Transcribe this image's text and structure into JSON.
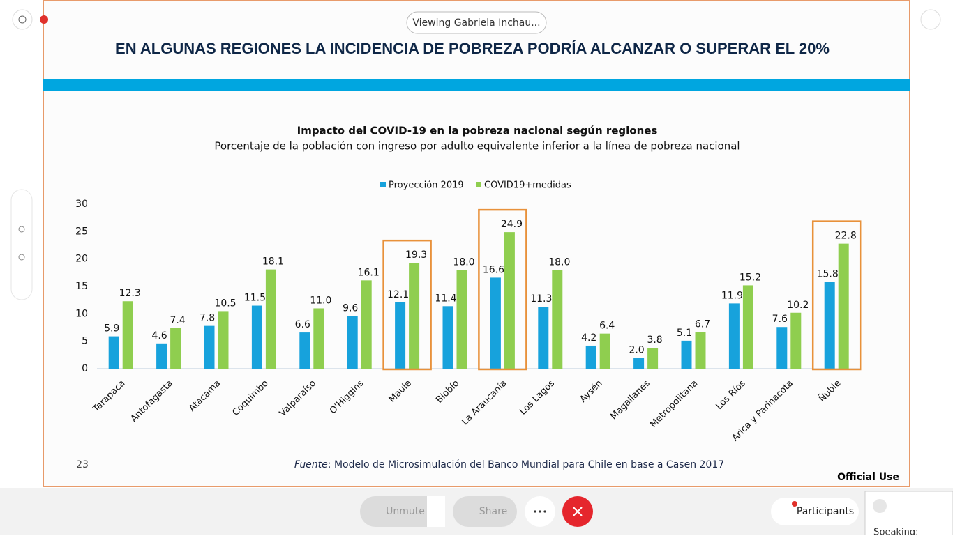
{
  "viewing_banner": "Viewing Gabriela Inchau...",
  "slide": {
    "title": "EN ALGUNAS REGIONES LA INCIDENCIA DE POBREZA PODRÍA ALCANZAR O SUPERAR EL 20%",
    "page_number": "23",
    "source_label": "Fuente",
    "source_text": ": Modelo de Microsimulación del Banco Mundial para Chile en base a Casen 2017",
    "footer": "Official Use"
  },
  "chart_data": {
    "type": "bar",
    "title": "Impacto del COVID-19 en la pobreza nacional según regiones",
    "subtitle": "Porcentaje de la población con ingreso por adulto equivalente inferior a la línea de pobreza nacional",
    "categories": [
      "Tarapacá",
      "Antofagasta",
      "Atacama",
      "Coquimbo",
      "Valparaíso",
      "O'Higgins",
      "Maule",
      "Biobío",
      "La Araucanía",
      "Los Lagos",
      "Aysén",
      "Magallanes",
      "Metropolitana",
      "Los Ríos",
      "Arica y Parinacota",
      "Ñuble"
    ],
    "series": [
      {
        "name": "Proyección 2019",
        "color": "#17a2dc",
        "values": [
          5.9,
          4.6,
          7.8,
          11.5,
          6.6,
          9.6,
          12.1,
          11.4,
          16.6,
          11.3,
          4.2,
          2.0,
          5.1,
          11.9,
          7.6,
          15.8
        ],
        "value_labels": [
          "5.9",
          "4.6",
          "7.8",
          "11.5",
          "6.6",
          "9.6",
          "12.1",
          "11.4",
          "16.6",
          "11.3",
          "4.2",
          "2.0",
          "5.1",
          "11.9",
          "7.6",
          "15.8"
        ]
      },
      {
        "name": "COVID19+medidas",
        "color": "#8fce4f",
        "values": [
          12.3,
          7.4,
          10.5,
          18.1,
          11.0,
          16.1,
          19.3,
          18.0,
          24.9,
          18.0,
          6.4,
          3.8,
          6.7,
          15.2,
          10.2,
          22.8
        ],
        "value_labels": [
          "12.3",
          "7.4",
          "10.5",
          "18.1",
          "11.0",
          "16.1",
          "19.3",
          "18.0",
          "24.9",
          "18.0",
          "6.4",
          "3.8",
          "6.7",
          "15.2",
          "10.2",
          "22.8"
        ]
      }
    ],
    "ylim": [
      0,
      30
    ],
    "yticks": [
      0,
      5,
      10,
      15,
      20,
      25,
      30
    ],
    "legend": "top"
  },
  "toolbar": {
    "unmute": "Unmute",
    "share": "Share",
    "participants": "Participants",
    "speaking": "Speaking:"
  }
}
